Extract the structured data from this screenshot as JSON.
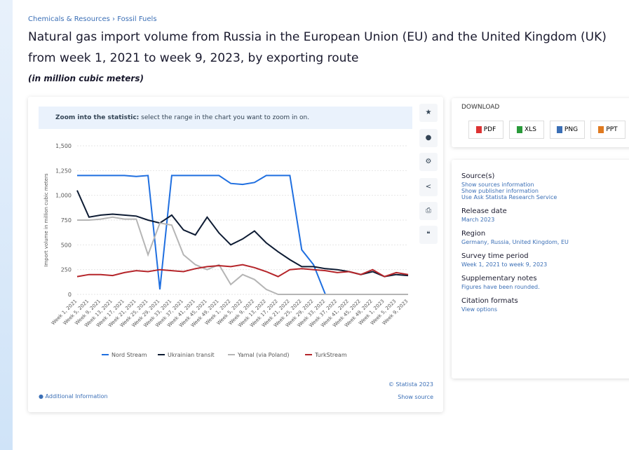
{
  "breadcrumb": "Chemicals & Resources › Fossil Fuels",
  "title": "Natural gas import volume from Russia in the European Union (EU) and the United Kingdom (UK) from week 1, 2021 to week 9, 2023, by exporting route",
  "subtitle": "(in million cubic meters)",
  "zoom_hint": {
    "label": "Zoom into the statistic:",
    "text": "select the range in the chart you want to zoom in on."
  },
  "chart_data": {
    "type": "line",
    "y_axis_label": "Import volume in million cubic meters",
    "categories": [
      "Week 1, 2021",
      "Week 5, 2021",
      "Week 9, 2021",
      "Week 13, 2021",
      "Week 17, 2021",
      "Week 21, 2021",
      "Week 25, 2021",
      "Week 29, 2021",
      "Week 33, 2021",
      "Week 37, 2021",
      "Week 41, 2021",
      "Week 45, 2021",
      "Week 49, 2021",
      "Week 1, 2022",
      "Week 5, 2022",
      "Week 9, 2022",
      "Week 13, 2022",
      "Week 17, 2022",
      "Week 21, 2022",
      "Week 25, 2022",
      "Week 29, 2022",
      "Week 33, 2022",
      "Week 37, 2022",
      "Week 41, 2022",
      "Week 45, 2022",
      "Week 49, 2022",
      "Week 1, 2023",
      "Week 5, 2023",
      "Week 9, 2023"
    ],
    "series": [
      {
        "name": "Nord Stream",
        "color": "#1f6fe0",
        "values": [
          1200,
          1200,
          1200,
          1200,
          1200,
          1190,
          1200,
          50,
          1200,
          1200,
          1200,
          1200,
          1200,
          1120,
          1110,
          1130,
          1200,
          1200,
          1200,
          450,
          300,
          0,
          0,
          null,
          null,
          null,
          null,
          null,
          null
        ]
      },
      {
        "name": "Ukrainian transit",
        "color": "#0d1b33",
        "values": [
          1050,
          780,
          800,
          810,
          800,
          790,
          750,
          720,
          800,
          650,
          600,
          780,
          620,
          500,
          560,
          640,
          520,
          430,
          350,
          280,
          280,
          260,
          250,
          230,
          200,
          230,
          180,
          200,
          190
        ]
      },
      {
        "name": "Yamal (via Poland)",
        "color": "#b5b5b5",
        "values": [
          750,
          750,
          760,
          780,
          760,
          760,
          400,
          720,
          700,
          400,
          300,
          250,
          300,
          100,
          200,
          150,
          50,
          0,
          0,
          0,
          0,
          0,
          0,
          0,
          0,
          0,
          0,
          0,
          0
        ]
      },
      {
        "name": "TurkStream",
        "color": "#b5252a",
        "values": [
          180,
          200,
          200,
          190,
          220,
          240,
          230,
          250,
          240,
          230,
          260,
          280,
          290,
          280,
          300,
          270,
          230,
          180,
          250,
          260,
          250,
          240,
          220,
          230,
          200,
          250,
          180,
          220,
          200
        ]
      }
    ],
    "ylim": [
      0,
      1500
    ],
    "yticks": [
      0,
      250,
      500,
      750,
      {
        "value": 1000,
        "label": "1,000"
      },
      {
        "value": 1250,
        "label": "1,250"
      },
      {
        "value": 1500,
        "label": "1,500"
      }
    ],
    "grid": true
  },
  "footer": {
    "additional": "Additional Information",
    "copyright": "© Statista 2023",
    "show_source": "Show source"
  },
  "download": {
    "heading": "DOWNLOAD",
    "buttons": [
      "PDF",
      "XLS",
      "PNG",
      "PPT"
    ]
  },
  "details": [
    {
      "heading": "Source(s)",
      "lines": [
        "Show sources information",
        "Show publisher information",
        "Use Ask Statista Research Service"
      ]
    },
    {
      "heading": "Release date",
      "lines": [
        "March 2023"
      ]
    },
    {
      "heading": "Region",
      "lines": [
        "Germany, Russia, United Kingdom, EU"
      ]
    },
    {
      "heading": "Survey time period",
      "lines": [
        "Week 1, 2021 to week 9, 2023"
      ]
    },
    {
      "heading": "Supplementary notes",
      "lines": [
        "Figures have been rounded."
      ]
    },
    {
      "heading": "Citation formats",
      "lines": [
        "View options"
      ]
    }
  ]
}
